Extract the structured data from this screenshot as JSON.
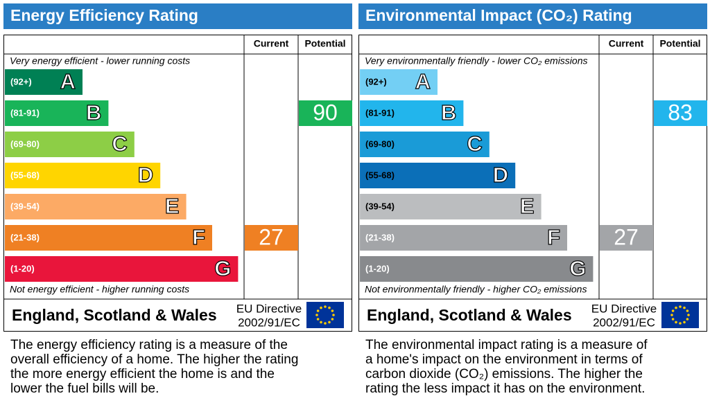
{
  "panels": [
    {
      "title": "Energy Efficiency Rating",
      "columns": [
        "Current",
        "Potential"
      ],
      "top_note": "Very energy efficient - lower running costs",
      "bottom_note": "Not energy efficient - higher running costs",
      "bands": [
        {
          "label": "(92+)",
          "letter": "A",
          "color": "#008054",
          "text_color": "#ffffff"
        },
        {
          "label": "(81-91)",
          "letter": "B",
          "color": "#19b459",
          "text_color": "#ffffff"
        },
        {
          "label": "(69-80)",
          "letter": "C",
          "color": "#8dce46",
          "text_color": "#ffffff"
        },
        {
          "label": "(55-68)",
          "letter": "D",
          "color": "#ffd500",
          "text_color": "#ffffff"
        },
        {
          "label": "(39-54)",
          "letter": "E",
          "color": "#fcaa65",
          "text_color": "#ffffff"
        },
        {
          "label": "(21-38)",
          "letter": "F",
          "color": "#ef8023",
          "text_color": "#ffffff"
        },
        {
          "label": "(1-20)",
          "letter": "G",
          "color": "#e9153b",
          "text_color": "#ffffff"
        }
      ],
      "current": 27,
      "potential": 90,
      "region": "England, Scotland & Wales",
      "directive": [
        "EU Directive",
        "2002/91/EC"
      ],
      "description": [
        "The energy efficiency rating is a measure of the",
        "overall efficiency of a home. The higher the rating",
        "the more energy efficient the home is and the",
        "lower the fuel bills will be."
      ]
    },
    {
      "title": "Environmental Impact (CO₂) Rating",
      "columns": [
        "Current",
        "Potential"
      ],
      "top_note": "Very environmentally friendly - lower CO₂ emissions",
      "bottom_note": "Not environmentally friendly - higher CO₂ emissions",
      "bands": [
        {
          "label": "(92+)",
          "letter": "A",
          "color": "#73cff4",
          "text_color": "#000000"
        },
        {
          "label": "(81-91)",
          "letter": "B",
          "color": "#22b5ec",
          "text_color": "#000000"
        },
        {
          "label": "(69-80)",
          "letter": "C",
          "color": "#1a9bd7",
          "text_color": "#000000"
        },
        {
          "label": "(55-68)",
          "letter": "D",
          "color": "#0b6fb8",
          "text_color": "#000000"
        },
        {
          "label": "(39-54)",
          "letter": "E",
          "color": "#bbbdbf",
          "text_color": "#000000"
        },
        {
          "label": "(21-38)",
          "letter": "F",
          "color": "#a3a5a8",
          "text_color": "#ffffff"
        },
        {
          "label": "(1-20)",
          "letter": "G",
          "color": "#888a8d",
          "text_color": "#ffffff"
        }
      ],
      "current": 27,
      "potential": 83,
      "region": "England, Scotland & Wales",
      "directive": [
        "EU Directive",
        "2002/91/EC"
      ],
      "description": [
        "The environmental impact rating is a measure of",
        "a home's impact on the environment in terms of",
        "carbon dioxide (CO₂) emissions. The higher the",
        "rating the less impact it has on the environment."
      ]
    }
  ]
}
